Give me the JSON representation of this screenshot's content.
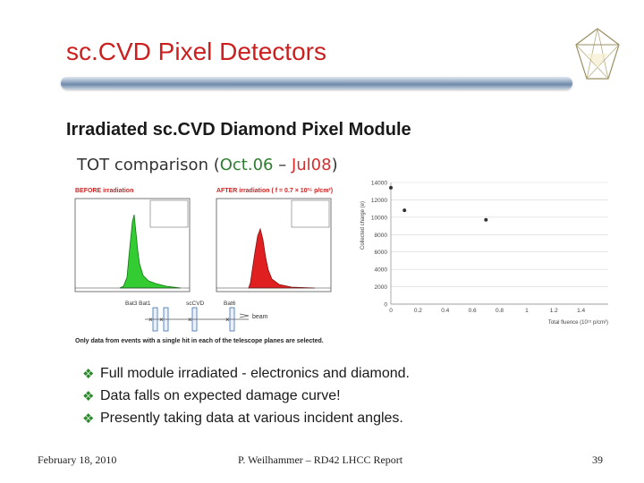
{
  "slide": {
    "title": "sc.CVD Pixel Detectors",
    "subtitle": "Irradiated sc.CVD Diamond Pixel Module",
    "figure": {
      "heading_prefix": "TOT comparison (",
      "heading_before": "Oct.06",
      "heading_sep": " – ",
      "heading_after": "Jul08",
      "heading_suffix": ")",
      "before_label": "BEFORE irradiation",
      "after_label": "AFTER irradiation ( f = 0.7 × 10¹⁵ p/cm²)",
      "beam_label": "beam",
      "telescope_labels": [
        "Bat3 Bat1",
        "scCVD",
        "Bat6"
      ],
      "caption": "Only data from events with a single hit in each of the telescope planes are selected."
    },
    "bullets": [
      " Full module irradiated - electronics and diamond.",
      "Data falls on expected damage curve!",
      "Presently taking data at various incident angles."
    ],
    "footer": {
      "date": "February 18, 2010",
      "author": "P. Weilhammer – RD42 LHCC Report",
      "page": "39"
    }
  },
  "colors": {
    "title": "#cc1f1f",
    "before_hist": "#33cc33",
    "after_hist": "#e02020",
    "bullet": "#2a8a2a"
  },
  "chart_data": [
    {
      "type": "scatter",
      "xlabel": "Total fluence (10¹⁵ p/cm²)",
      "ylabel": "Collected charge (e)",
      "xlim": [
        0,
        1.6
      ],
      "ylim": [
        0,
        14000
      ],
      "xticks": [
        0,
        0.2,
        0.4,
        0.6,
        0.8,
        1.0,
        1.2,
        1.4
      ],
      "yticks": [
        0,
        2000,
        4000,
        6000,
        8000,
        10000,
        12000,
        14000
      ],
      "x": [
        0.0,
        0.1,
        0.7
      ],
      "y": [
        13400,
        10800,
        9700
      ],
      "grid": true
    }
  ]
}
